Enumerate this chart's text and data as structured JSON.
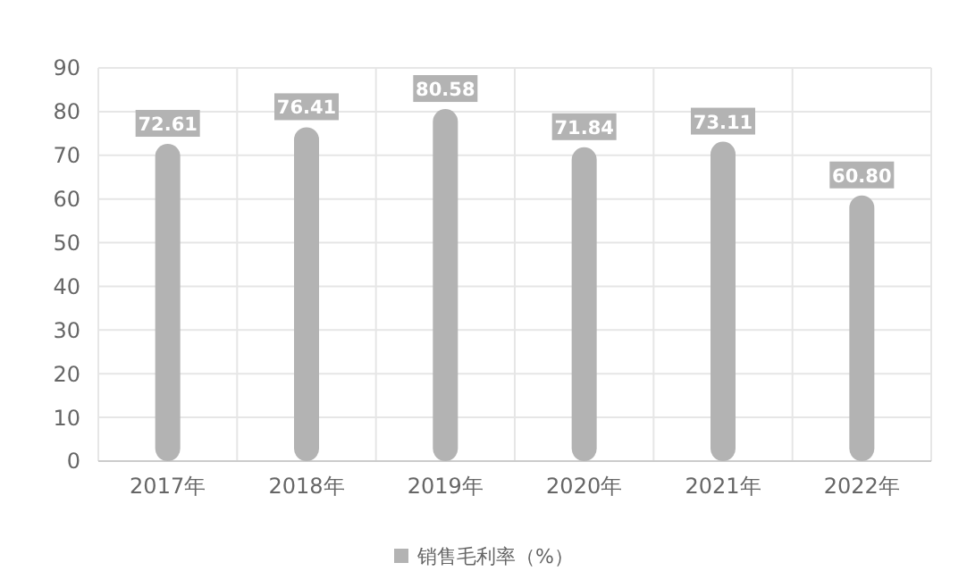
{
  "chart_data": {
    "type": "bar",
    "categories": [
      "2017年",
      "2018年",
      "2019年",
      "2020年",
      "2021年",
      "2022年"
    ],
    "series": [
      {
        "name": "销售毛利率（%）",
        "color": "#b3b3b3",
        "values": [
          72.61,
          76.41,
          80.58,
          71.84,
          73.11,
          60.8
        ]
      }
    ],
    "value_labels": [
      "72.61",
      "76.41",
      "80.58",
      "71.84",
      "73.11",
      "60.80"
    ],
    "ylim": [
      0,
      90
    ],
    "yticks": [
      0,
      10,
      20,
      30,
      40,
      50,
      60,
      70,
      80,
      90
    ],
    "grid": true,
    "legend": "bottom"
  }
}
